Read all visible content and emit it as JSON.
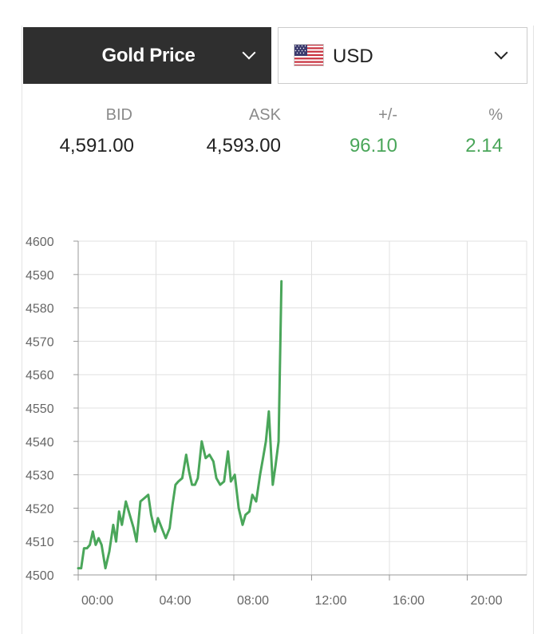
{
  "selector": {
    "metal_label": "Gold Price",
    "currency_label": "USD",
    "flag_icon": "us-flag-icon"
  },
  "quote": {
    "bid_label": "BID",
    "ask_label": "ASK",
    "change_label": "+/-",
    "percent_label": "%",
    "bid": "4,591.00",
    "ask": "4,593.00",
    "change": "96.10",
    "percent": "2.14"
  },
  "colors": {
    "header_bg": "#2f2f2f",
    "line": "#4aa65a",
    "positive": "#4aa65a",
    "grid": "#e0e0e0"
  },
  "chart_data": {
    "type": "line",
    "title": "",
    "xlabel": "",
    "ylabel": "",
    "ylim": [
      4500,
      4600
    ],
    "xlim": [
      0,
      24
    ],
    "yticks": [
      4500,
      4510,
      4520,
      4530,
      4540,
      4550,
      4560,
      4570,
      4580,
      4590,
      4600
    ],
    "xticks": [
      {
        "value": 0,
        "label": "00:00"
      },
      {
        "value": 4,
        "label": "04:00"
      },
      {
        "value": 8,
        "label": "08:00"
      },
      {
        "value": 12,
        "label": "12:00"
      },
      {
        "value": 16,
        "label": "16:00"
      },
      {
        "value": 20,
        "label": "20:00"
      }
    ],
    "grid": true,
    "series": [
      {
        "x": [
          0.0,
          0.15,
          0.3,
          0.45,
          0.6,
          0.75,
          0.9,
          1.05,
          1.2,
          1.4,
          1.6,
          1.8,
          1.95,
          2.1,
          2.25,
          2.45,
          2.65,
          2.85,
          3.0,
          3.2,
          3.4,
          3.6,
          3.75,
          3.95,
          4.1,
          4.3,
          4.5,
          4.7,
          4.85,
          5.0,
          5.15,
          5.35,
          5.55,
          5.7,
          5.85,
          6.0,
          6.15,
          6.35,
          6.55,
          6.75,
          6.95,
          7.1,
          7.3,
          7.5,
          7.7,
          7.85,
          8.05,
          8.25,
          8.45,
          8.6,
          8.8,
          8.95,
          9.15,
          9.35,
          9.5,
          9.65,
          9.8,
          10.0,
          10.15,
          10.3,
          10.45
        ],
        "y": [
          4502,
          4502,
          4508,
          4508,
          4509,
          4513,
          4509,
          4511,
          4509,
          4502,
          4507,
          4515,
          4510,
          4519,
          4515,
          4522,
          4518,
          4514,
          4510,
          4522,
          4523,
          4524,
          4518,
          4513,
          4517,
          4514,
          4511,
          4514,
          4521,
          4527,
          4528,
          4529,
          4536,
          4531,
          4527,
          4527,
          4529,
          4540,
          4535,
          4536,
          4534,
          4529,
          4527,
          4528,
          4537,
          4528,
          4530,
          4520,
          4515,
          4518,
          4519,
          4524,
          4522,
          4530,
          4535,
          4540,
          4549,
          4527,
          4533,
          4540,
          4588
        ]
      }
    ]
  }
}
